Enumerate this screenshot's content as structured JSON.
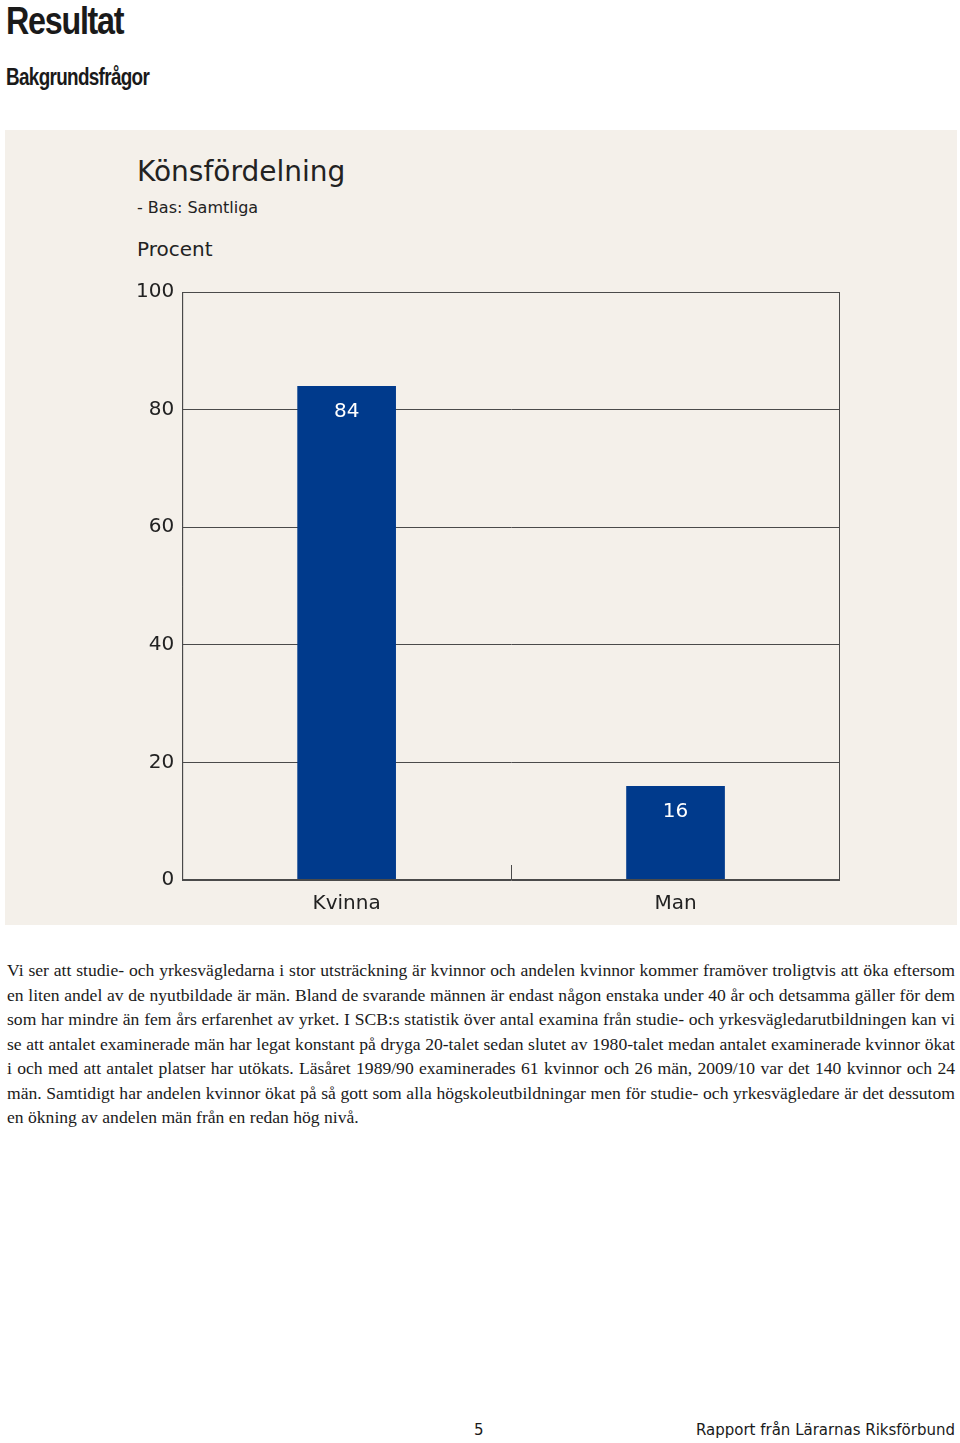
{
  "header": {
    "title": "Resultat",
    "subtitle": "Bakgrundsfrågor"
  },
  "chart_data": {
    "type": "bar",
    "title": "Könsfördelning",
    "subtitle": "- Bas: Samtliga",
    "y_label": "Procent",
    "categories": [
      "Kvinna",
      "Man"
    ],
    "values": [
      84,
      16
    ],
    "color": "#003a8c",
    "ylim": [
      0,
      100
    ],
    "yticks": [
      0,
      20,
      40,
      60,
      80,
      100
    ],
    "grid": true,
    "data_labels": true
  },
  "body": {
    "paragraphs": [
      "Vi ser att studie- och yrkesvägledarna i stor utsträckning är kvinnor och andelen kvinnor kommer framöver troligtvis att öka eftersom en liten andel av de nyutbildade är män. Bland de svarande männen är endast någon enstaka under 40 år och detsamma gäller för dem som har mindre än fem års erfarenhet av yrket. I SCB:s statistik över antal examina från studie- och yrkesvägledarutbildningen kan vi se att antalet examinerade män har legat konstant på dryga 20-talet sedan slutet av 1980-talet medan antalet examinerade kvinnor ökat i och med att antalet platser har utökats. Läsåret 1989/90 examinerades 61 kvinnor och 26 män, 2009/10 var det 140 kvinnor och 24 män. Samtidigt har andelen kvinnor ökat på så gott som alla högskoleutbildningar men för studie- och yrkesvägledare är det dessutom en ökning av andelen män från en redan hög nivå."
    ]
  },
  "footer": {
    "page": "5",
    "source": "Rapport från Lärarnas Riksförbund"
  }
}
